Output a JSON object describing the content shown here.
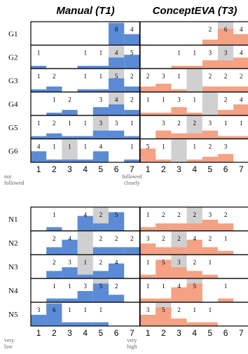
{
  "colors": {
    "manual": "#5b8bd6",
    "concepteva": "#f4a184",
    "median": "#d0d0d0",
    "border": "#000000"
  },
  "conditions": [
    {
      "title": "Manual (T1)",
      "color_key": "manual"
    },
    {
      "title": "ConceptEVA (T3)",
      "color_key": "concepteva"
    }
  ],
  "chart_data": [
    {
      "type": "bar",
      "subtype": "likert-histogram-grid",
      "scale": [
        1,
        2,
        3,
        4,
        5,
        6,
        7
      ],
      "ticks": [
        "1",
        "2",
        "3",
        "4",
        "5",
        "6",
        "7"
      ],
      "low_anchor": [
        "not",
        "followed"
      ],
      "high_anchor": [
        "followed",
        "closely"
      ],
      "ymax": 8,
      "rows": [
        {
          "label": "G1",
          "manual": {
            "counts": [
              0,
              0,
              0,
              0,
              0,
              8,
              4
            ],
            "median": 6
          },
          "concepteva": {
            "counts": [
              0,
              0,
              0,
              0,
              2,
              6,
              4
            ],
            "median": 6
          }
        },
        {
          "label": "G2",
          "manual": {
            "counts": [
              1,
              0,
              0,
              1,
              1,
              4,
              5
            ],
            "median": 6
          },
          "concepteva": {
            "counts": [
              0,
              0,
              1,
              1,
              3,
              3,
              4
            ],
            "median": 6
          }
        },
        {
          "label": "G3",
          "manual": {
            "counts": [
              1,
              2,
              0,
              1,
              1,
              5,
              2
            ],
            "median": 6
          },
          "concepteva": {
            "counts": [
              2,
              3,
              1,
              0,
              2,
              2,
              2
            ],
            "median": 4
          }
        },
        {
          "label": "G4",
          "manual": {
            "counts": [
              0,
              1,
              2,
              0,
              3,
              4,
              2
            ],
            "median": 6
          },
          "concepteva": {
            "counts": [
              1,
              1,
              3,
              1,
              0,
              2,
              4
            ],
            "median": 5
          }
        },
        {
          "label": "G5",
          "manual": {
            "counts": [
              1,
              2,
              1,
              1,
              3,
              3,
              1
            ],
            "median": 5
          },
          "concepteva": {
            "counts": [
              0,
              3,
              2,
              2,
              3,
              1,
              1
            ],
            "median": 4
          }
        },
        {
          "label": "G6",
          "manual": {
            "counts": [
              4,
              1,
              1,
              1,
              4,
              0,
              1
            ],
            "median": 3
          },
          "concepteva": {
            "counts": [
              5,
              1,
              0,
              1,
              2,
              3,
              0
            ],
            "median": 3
          }
        }
      ]
    },
    {
      "type": "bar",
      "subtype": "likert-histogram-grid",
      "scale": [
        1,
        2,
        3,
        4,
        5,
        6,
        7
      ],
      "ticks": [
        "1",
        "2",
        "3",
        "4",
        "5",
        "6",
        "7"
      ],
      "low_anchor": [
        "very",
        "low"
      ],
      "high_anchor": [
        "very",
        "high"
      ],
      "ymax": 6,
      "rows": [
        {
          "label": "N1",
          "manual": {
            "counts": [
              0,
              1,
              0,
              4,
              2,
              5,
              0
            ],
            "median": 5
          },
          "concepteva": {
            "counts": [
              1,
              2,
              2,
              2,
              3,
              2,
              0
            ],
            "median": 4
          }
        },
        {
          "label": "N2",
          "manual": {
            "counts": [
              0,
              2,
              4,
              0,
              2,
              2,
              2
            ],
            "median": 4
          },
          "concepteva": {
            "counts": [
              3,
              2,
              2,
              4,
              2,
              1,
              0
            ],
            "median": 3
          }
        },
        {
          "label": "N3",
          "manual": {
            "counts": [
              0,
              2,
              3,
              1,
              2,
              4,
              0
            ],
            "median": 4
          },
          "concepteva": {
            "counts": [
              1,
              5,
              3,
              2,
              1,
              0,
              0
            ],
            "median": 3
          }
        },
        {
          "label": "N4",
          "manual": {
            "counts": [
              0,
              1,
              1,
              3,
              5,
              2,
              0
            ],
            "median": 5
          },
          "concepteva": {
            "counts": [
              1,
              1,
              4,
              5,
              0,
              1,
              0
            ],
            "median": 4
          }
        },
        {
          "label": "N5",
          "manual": {
            "counts": [
              3,
              6,
              1,
              1,
              1,
              0,
              0
            ],
            "median": 2
          },
          "concepteva": {
            "counts": [
              3,
              5,
              2,
              1,
              1,
              0,
              0
            ],
            "median": 2
          }
        }
      ]
    }
  ]
}
